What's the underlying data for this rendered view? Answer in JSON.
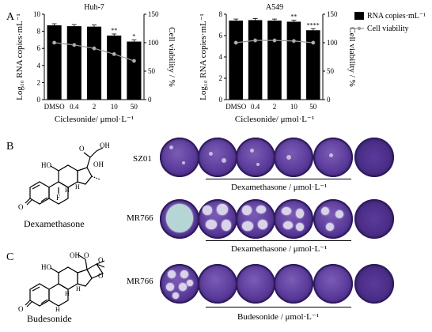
{
  "panels": {
    "A": "A",
    "B": "B",
    "C": "C"
  },
  "chart_data": [
    {
      "type": "bar",
      "title": "Huh-7",
      "categories": [
        "DMSO",
        "0.4",
        "2",
        "10",
        "50"
      ],
      "series": [
        {
          "name": "RNA copies·mL⁻¹",
          "values": [
            8.7,
            8.6,
            8.55,
            7.5,
            6.8
          ],
          "axis": "left"
        },
        {
          "name": "Cell viability",
          "values": [
            100,
            96,
            90,
            80,
            68
          ],
          "axis": "right"
        }
      ],
      "xlabel": "Ciclesonide/ μmol·L⁻¹",
      "ylabel": "Log₁₀ RNA copies·mL⁻¹",
      "y2label": "Cell viability / %",
      "ylim": [
        0,
        10
      ],
      "yticks": [
        "0",
        "2",
        "4",
        "6",
        "8",
        "10"
      ],
      "y2lim": [
        0,
        150
      ],
      "y2ticks": [
        "0",
        "50",
        "100",
        "150"
      ],
      "annotations": [
        {
          "category": "10",
          "text": "**"
        },
        {
          "category": "50",
          "text": "*"
        }
      ]
    },
    {
      "type": "bar",
      "title": "A549",
      "categories": [
        "DMSO",
        "0.4",
        "2",
        "10",
        "50"
      ],
      "series": [
        {
          "name": "RNA copies·mL⁻¹",
          "values": [
            7.4,
            7.45,
            7.4,
            7.3,
            6.5
          ],
          "axis": "left"
        },
        {
          "name": "Cell viability",
          "values": [
            100,
            104,
            104,
            103,
            100
          ],
          "axis": "right"
        }
      ],
      "xlabel": "Ciclesonide/ μmol·L⁻¹",
      "ylabel": "Log₁₀ RNA copies·mL⁻¹",
      "y2label": "Cell viability / %",
      "ylim": [
        0,
        8
      ],
      "yticks": [
        "0",
        "2",
        "4",
        "6",
        "8"
      ],
      "y2lim": [
        0,
        150
      ],
      "y2ticks": [
        "0",
        "50",
        "100",
        "150"
      ],
      "annotations": [
        {
          "category": "10",
          "text": "**"
        },
        {
          "category": "50",
          "text": "****"
        }
      ]
    }
  ],
  "legend": {
    "bar": "RNA copies·mL⁻¹",
    "line": "Cell viability"
  },
  "panelB": {
    "compound": "Dexamethasone",
    "row1_label": "SZ01",
    "row2_label": "MR766",
    "row1_caption": "Dexamethasone / μmol·L⁻¹",
    "row2_caption": "Dexamethasone / μmol·L⁻¹",
    "struct": {
      "oh1": "OH",
      "oh2": "OH",
      "ho": "HO",
      "o1": "O",
      "o2": "O",
      "f": "F",
      "h1": "H",
      "h2": "H"
    }
  },
  "panelC": {
    "compound": "Budesonide",
    "row_label": "MR766",
    "caption": "Budesonide / μmol·L⁻¹",
    "struct": {
      "oh": "OH",
      "ho": "HO",
      "o1": "O",
      "o2": "O",
      "o3": "O",
      "o4": "O",
      "h1": "H",
      "h2": "H",
      "h3": "H"
    }
  },
  "colors": {
    "bar": "#000000",
    "line": "#9a9a9a",
    "plate": "#5a3a9a"
  }
}
